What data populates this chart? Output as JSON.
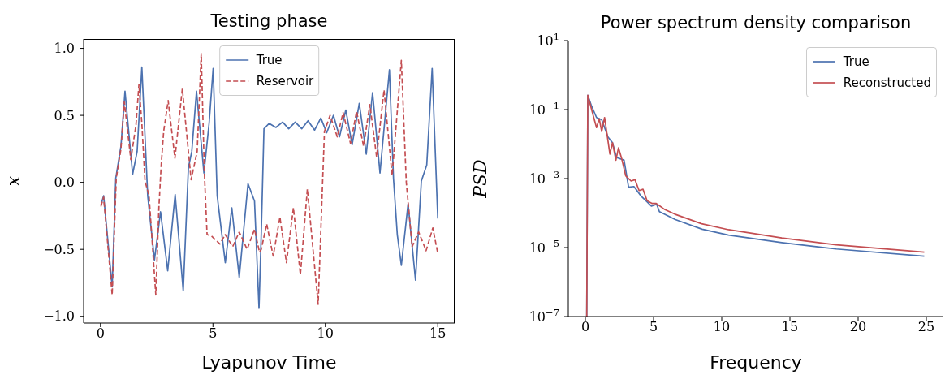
{
  "chart_data": [
    {
      "type": "line",
      "title": "Testing phase",
      "xlabel": "Lyapunov Time",
      "ylabel": "x",
      "xlim": [
        -0.75,
        15.75
      ],
      "ylim": [
        -1.05,
        1.07
      ],
      "xticks": [
        0,
        5,
        10,
        15
      ],
      "yticks": [
        {
          "value": -1,
          "label": "−1.0"
        },
        {
          "value": -0.5,
          "label": "−0.5"
        },
        {
          "value": 0,
          "label": "0.0"
        },
        {
          "value": 0.5,
          "label": "0.5"
        },
        {
          "value": 1,
          "label": "1.0"
        }
      ],
      "legend": "top",
      "series": [
        {
          "name": "True",
          "color": "#4c72b0",
          "line_style": "solid",
          "x": [
            0.02,
            0.14,
            0.52,
            0.68,
            0.91,
            1.09,
            1.43,
            1.63,
            1.84,
            2.1,
            2.4,
            2.67,
            2.99,
            3.32,
            3.68,
            3.91,
            4.06,
            4.27,
            4.6,
            4.83,
            5.01,
            5.19,
            5.55,
            5.84,
            6.17,
            6.56,
            6.85,
            7.05,
            7.15,
            7.27,
            7.5,
            7.8,
            8.1,
            8.37,
            8.66,
            8.95,
            9.23,
            9.52,
            9.8,
            10.06,
            10.36,
            10.63,
            10.91,
            11.19,
            11.51,
            11.82,
            12.1,
            12.43,
            12.85,
            13.03,
            13.2,
            13.38,
            13.68,
            14.01,
            14.27,
            14.51,
            14.75,
            15
          ],
          "values": [
            -0.17,
            -0.1,
            -0.78,
            0.03,
            0.27,
            0.68,
            0.06,
            0.23,
            0.86,
            -0.1,
            -0.58,
            -0.22,
            -0.66,
            -0.09,
            -0.81,
            0.11,
            0.23,
            0.68,
            0.07,
            0.44,
            0.85,
            -0.1,
            -0.6,
            -0.19,
            -0.71,
            -0.01,
            -0.14,
            -0.94,
            -0.38,
            0.4,
            0.44,
            0.41,
            0.45,
            0.4,
            0.45,
            0.4,
            0.46,
            0.39,
            0.48,
            0.37,
            0.5,
            0.34,
            0.54,
            0.28,
            0.59,
            0.21,
            0.67,
            0.07,
            0.84,
            0.03,
            -0.39,
            -0.62,
            -0.16,
            -0.73,
            0.01,
            0.13,
            0.85,
            -0.27
          ]
        },
        {
          "name": "Reservoir",
          "color": "#c44e52",
          "line_style": "dashed",
          "x": [
            0.02,
            0.14,
            0.52,
            0.7,
            0.91,
            1.06,
            1.35,
            1.58,
            1.71,
            1.84,
            1.98,
            2.16,
            2.46,
            2.6,
            2.7,
            2.81,
            3.01,
            3.31,
            3.64,
            4.03,
            4.3,
            4.48,
            4.62,
            4.74,
            4.93,
            5.31,
            5.55,
            5.88,
            6.17,
            6.52,
            6.85,
            7.07,
            7.15,
            7.39,
            7.68,
            7.98,
            8.27,
            8.58,
            8.89,
            9.2,
            9.68,
            9.96,
            10.21,
            10.53,
            10.79,
            11.12,
            11.39,
            11.7,
            11.98,
            12.28,
            12.61,
            12.97,
            13.38,
            13.6,
            13.86,
            14.15,
            14.48,
            14.78,
            15
          ],
          "values": [
            -0.18,
            -0.11,
            -0.84,
            0.03,
            0.25,
            0.6,
            0.17,
            0.43,
            0.73,
            0.44,
            0.01,
            -0.1,
            -0.84,
            -0.18,
            0.13,
            0.38,
            0.61,
            0.18,
            0.7,
            0.02,
            0.23,
            0.96,
            0.07,
            -0.39,
            -0.4,
            -0.46,
            -0.39,
            -0.48,
            -0.37,
            -0.5,
            -0.35,
            -0.52,
            -0.5,
            -0.31,
            -0.55,
            -0.26,
            -0.6,
            -0.19,
            -0.69,
            -0.05,
            -0.91,
            0.38,
            0.5,
            0.34,
            0.52,
            0.29,
            0.53,
            0.27,
            0.58,
            0.19,
            0.69,
            0.05,
            0.91,
            0,
            -0.48,
            -0.37,
            -0.51,
            -0.34,
            -0.53
          ]
        }
      ]
    },
    {
      "type": "line",
      "title": "Power spectrum density comparison",
      "xlabel": "Frequency",
      "ylabel": "PSD",
      "log": "y",
      "xlim": [
        -1.25,
        26.25
      ],
      "ylim": [
        1e-07,
        10
      ],
      "xticks": [
        0,
        5,
        10,
        15,
        20,
        25
      ],
      "yticks": [
        {
          "value": 1e-07,
          "label": "10$^{−7}$"
        },
        {
          "value": 1e-05,
          "label": "10$^{−5}$"
        },
        {
          "value": 0.001,
          "label": "10$^{−3}$"
        },
        {
          "value": 0.1,
          "label": "10$^{−1}$"
        },
        {
          "value": 10,
          "label": "10$^{1}$"
        }
      ],
      "legend": "top right",
      "series": [
        {
          "name": "True",
          "color": "#4c72b0",
          "x": [
            0.1,
            0.18,
            0.43,
            0.82,
            1.2,
            1.66,
            1.99,
            2.28,
            2.84,
            3.17,
            3.56,
            4.09,
            4.54,
            4.84,
            5.23,
            5.43,
            6.6,
            8.56,
            10.5,
            14.4,
            18.4,
            24.85
          ],
          "values": [
            1e-07,
            0.26,
            0.135,
            0.059,
            0.051,
            0.016,
            0.011,
            0.0041,
            0.0034,
            0.00056,
            0.00059,
            0.00031,
            0.00021,
            0.00016,
            0.00018,
            0.00011,
            6.5e-05,
            3.4e-05,
            2.3e-05,
            1.4e-05,
            9.1e-06,
            5.6e-06
          ]
        },
        {
          "name": "Reconstructed",
          "color": "#c44e52",
          "x": [
            0.1,
            0.18,
            0.53,
            0.82,
            1.02,
            1.2,
            1.41,
            1.8,
            1.99,
            2.24,
            2.43,
            2.67,
            2.96,
            3.35,
            3.64,
            3.94,
            4.23,
            4.52,
            4.9,
            5.2,
            5.78,
            6.56,
            8.52,
            10.5,
            14.4,
            18.4,
            24.85
          ],
          "values": [
            1e-07,
            0.26,
            0.078,
            0.03,
            0.054,
            0.023,
            0.059,
            0.0051,
            0.011,
            0.0034,
            0.0078,
            0.0037,
            0.0012,
            0.00085,
            0.00093,
            0.00045,
            0.00049,
            0.00023,
            0.00019,
            0.00019,
            0.00013,
            9.3e-05,
            4.9e-05,
            3.3e-05,
            1.9e-05,
            1.2e-05,
            7.4e-06
          ]
        }
      ]
    }
  ]
}
